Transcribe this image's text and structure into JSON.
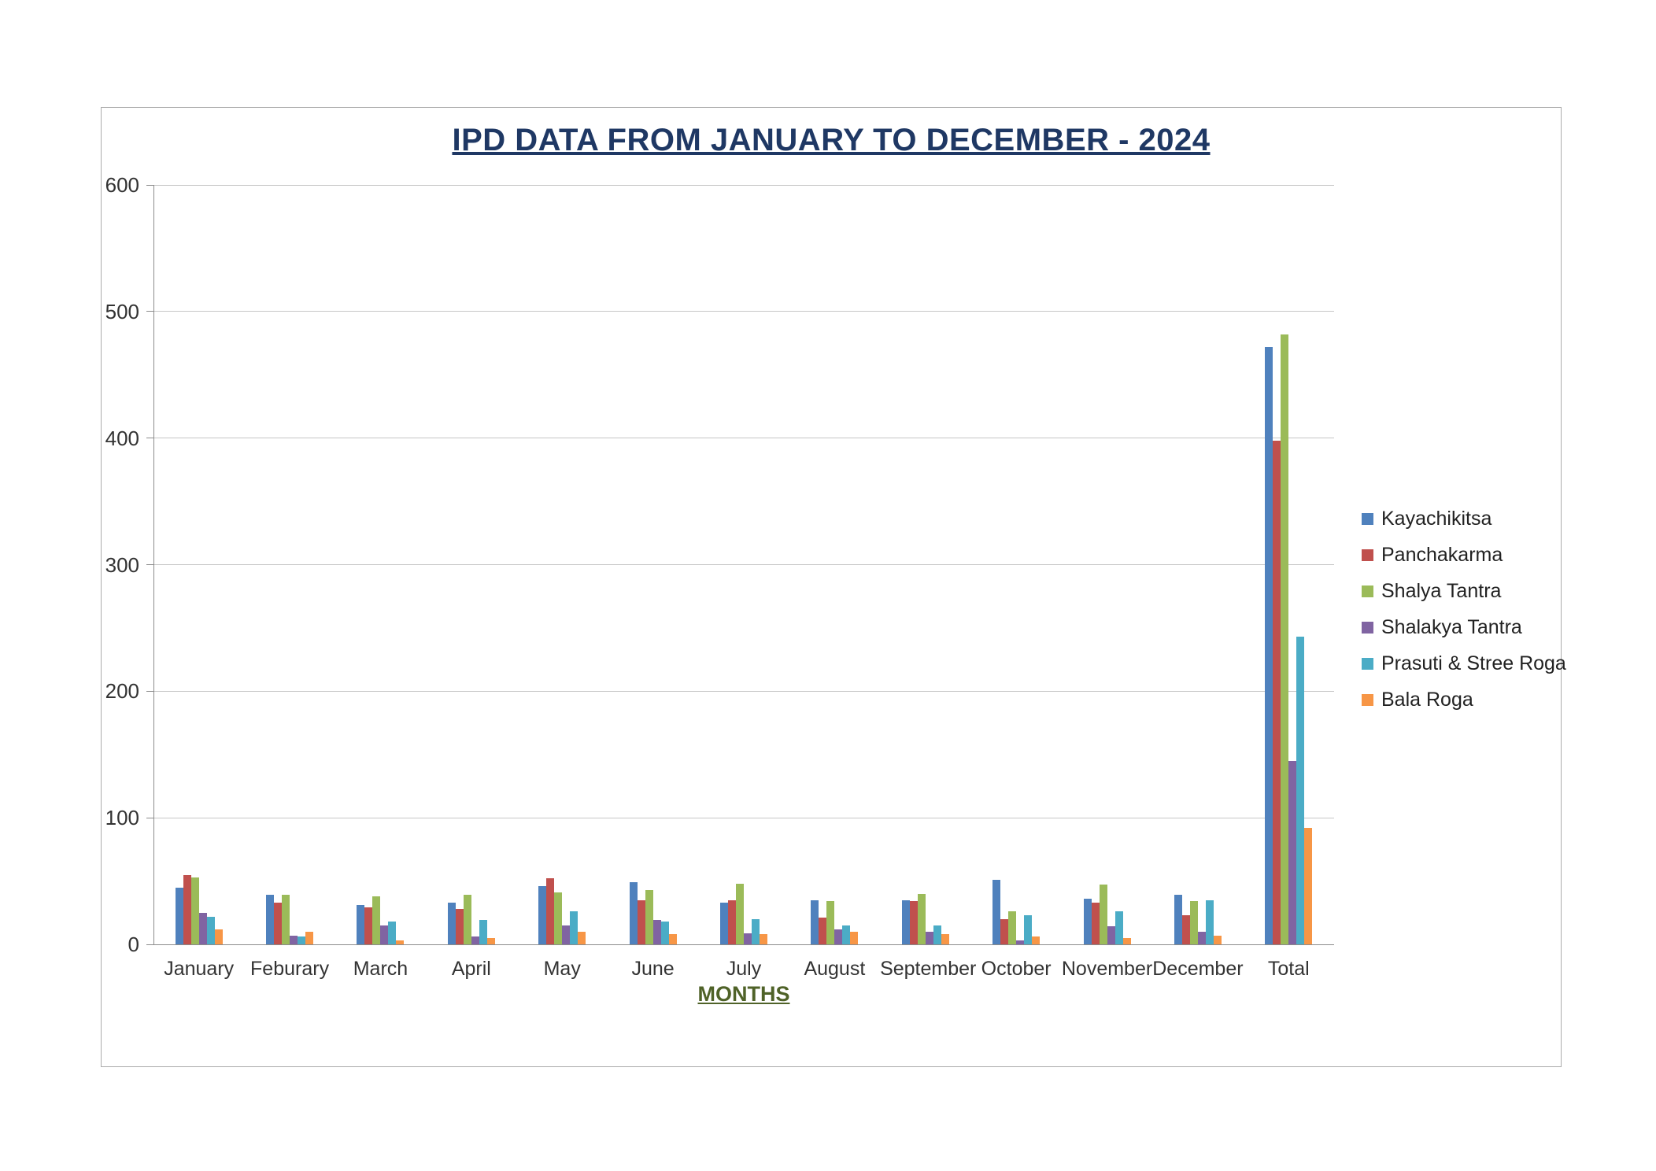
{
  "chart_data": {
    "type": "bar",
    "title": "IPD DATA FROM JANUARY TO DECEMBER - 2024",
    "xlabel": "MONTHS",
    "ylabel": "",
    "ylim": [
      0,
      600
    ],
    "ytick_interval": 100,
    "grid": "horizontal",
    "legend_position": "right",
    "categories": [
      "January",
      "Feburary",
      "March",
      "April",
      "May",
      "June",
      "July",
      "August",
      "September",
      "October",
      "November",
      "December",
      "Total"
    ],
    "series": [
      {
        "name": "Kayachikitsa",
        "color": "#4f81bd",
        "values": [
          45,
          39,
          31,
          33,
          46,
          49,
          33,
          35,
          35,
          51,
          36,
          39,
          472
        ]
      },
      {
        "name": "Panchakarma",
        "color": "#c0504d",
        "values": [
          55,
          33,
          29,
          28,
          52,
          35,
          35,
          21,
          34,
          20,
          33,
          23,
          398
        ]
      },
      {
        "name": "Shalya Tantra",
        "color": "#9bbb59",
        "values": [
          53,
          39,
          38,
          39,
          41,
          43,
          48,
          34,
          40,
          26,
          47,
          34,
          482
        ]
      },
      {
        "name": "Shalakya Tantra",
        "color": "#8064a2",
        "values": [
          25,
          7,
          15,
          6,
          15,
          19,
          9,
          12,
          10,
          3,
          14,
          10,
          145
        ]
      },
      {
        "name": "Prasuti & Stree Roga",
        "color": "#4bacc6",
        "values": [
          22,
          6,
          18,
          19,
          26,
          18,
          20,
          15,
          15,
          23,
          26,
          35,
          243
        ]
      },
      {
        "name": "Bala Roga",
        "color": "#f79646",
        "values": [
          12,
          10,
          3,
          5,
          10,
          8,
          8,
          10,
          8,
          6,
          5,
          7,
          92
        ]
      }
    ]
  }
}
